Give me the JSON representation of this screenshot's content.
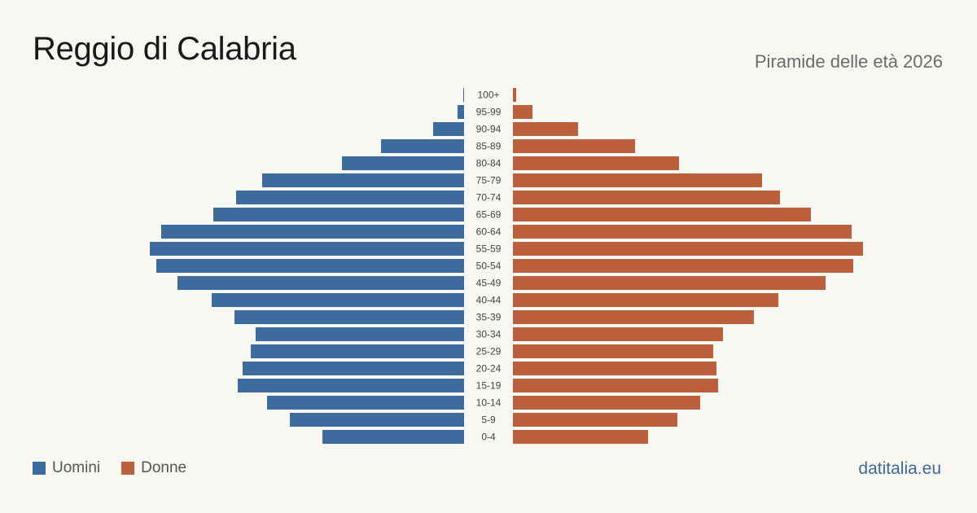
{
  "chart_data": {
    "type": "bar",
    "title": "Reggio di Calabria",
    "subtitle": "Piramide delle età 2026",
    "categories": [
      "100+",
      "95-99",
      "90-94",
      "85-89",
      "80-84",
      "75-79",
      "70-74",
      "65-69",
      "60-64",
      "55-59",
      "50-54",
      "45-49",
      "40-44",
      "35-39",
      "30-34",
      "25-29",
      "20-24",
      "15-19",
      "10-14",
      "5-9",
      "0-4"
    ],
    "series": [
      {
        "name": "Uomini",
        "color": "#3d6b9e",
        "values": [
          0.05,
          0.4,
          1.9,
          5.1,
          7.5,
          12.4,
          14.0,
          15.4,
          18.6,
          19.3,
          18.9,
          17.6,
          15.5,
          14.1,
          12.8,
          13.1,
          13.6,
          13.9,
          12.1,
          10.7,
          8.7
        ]
      },
      {
        "name": "Donne",
        "color": "#bb5f3d",
        "values": [
          0.2,
          1.2,
          4.0,
          7.5,
          10.2,
          15.3,
          16.4,
          18.3,
          20.8,
          21.5,
          20.9,
          19.2,
          16.3,
          14.8,
          12.9,
          12.3,
          12.5,
          12.6,
          11.5,
          10.1,
          8.3
        ]
      }
    ],
    "xlim": [
      0,
      22
    ],
    "grid": false,
    "legend_position": "bottom-left"
  },
  "brand": "datitalia.eu"
}
